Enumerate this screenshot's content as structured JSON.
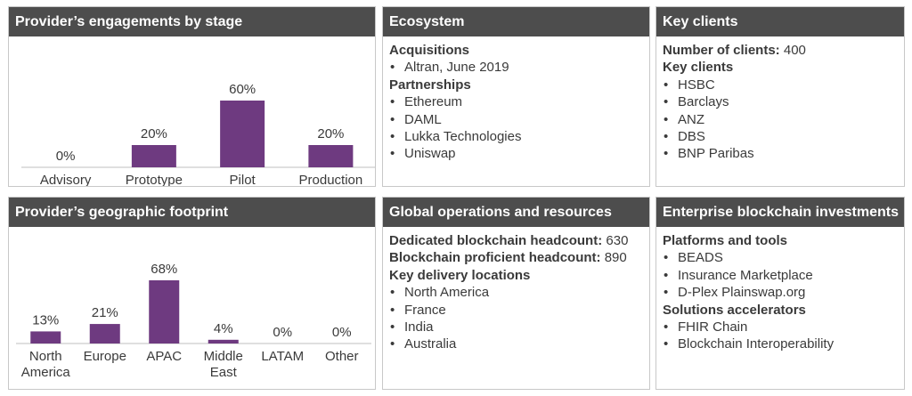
{
  "colors": {
    "header_bg": "#4d4d4d",
    "bar": "#6e3a80",
    "text": "#3a3a3a"
  },
  "panels": {
    "engagements": {
      "title": "Provider’s engagements by stage"
    },
    "ecosystem": {
      "title": "Ecosystem",
      "acquisitions_heading": "Acquisitions",
      "acquisitions": [
        "Altran, June 2019"
      ],
      "partnerships_heading": "Partnerships",
      "partnerships": [
        "Ethereum",
        "DAML",
        "Lukka Technologies",
        "Uniswap"
      ]
    },
    "key_clients": {
      "title": "Key clients",
      "count_label": "Number of clients:",
      "count_value": "400",
      "clients_heading": "Key clients",
      "clients": [
        "HSBC",
        "Barclays",
        "ANZ",
        "DBS",
        "BNP Paribas"
      ]
    },
    "geographic": {
      "title": "Provider’s geographic footprint"
    },
    "global_ops": {
      "title": "Global operations and resources",
      "dedicated_label": "Dedicated blockchain headcount:",
      "dedicated_value": "630",
      "proficient_label": "Blockchain proficient headcount:",
      "proficient_value": "890",
      "locations_heading": "Key delivery locations",
      "locations": [
        "North America",
        "France",
        "India",
        "Australia"
      ]
    },
    "investments": {
      "title": "Enterprise blockchain investments",
      "platforms_heading": "Platforms and tools",
      "platforms": [
        "BEADS",
        "Insurance Marketplace",
        "D-Plex Plainswap.org"
      ],
      "accelerators_heading": "Solutions accelerators",
      "accelerators": [
        "FHIR Chain",
        "Blockchain Interoperability"
      ]
    }
  },
  "chart_data": [
    {
      "type": "bar",
      "title": "Provider’s engagements by stage",
      "categories": [
        "Advisory",
        "Prototype",
        "Pilot",
        "Production"
      ],
      "values": [
        0,
        20,
        60,
        20
      ],
      "value_labels": [
        "0%",
        "20%",
        "60%",
        "20%"
      ],
      "ylim": [
        0,
        60
      ],
      "grid": false
    },
    {
      "type": "bar",
      "title": "Provider’s geographic footprint",
      "categories": [
        [
          "North",
          "America"
        ],
        [
          "Europe"
        ],
        [
          "APAC"
        ],
        [
          "Middle",
          "East"
        ],
        [
          "LATAM"
        ],
        [
          "Other"
        ]
      ],
      "values": [
        13,
        21,
        68,
        4,
        0,
        0
      ],
      "value_labels": [
        "13%",
        "21%",
        "68%",
        "4%",
        "0%",
        "0%"
      ],
      "ylim": [
        0,
        68
      ],
      "grid": false
    }
  ]
}
